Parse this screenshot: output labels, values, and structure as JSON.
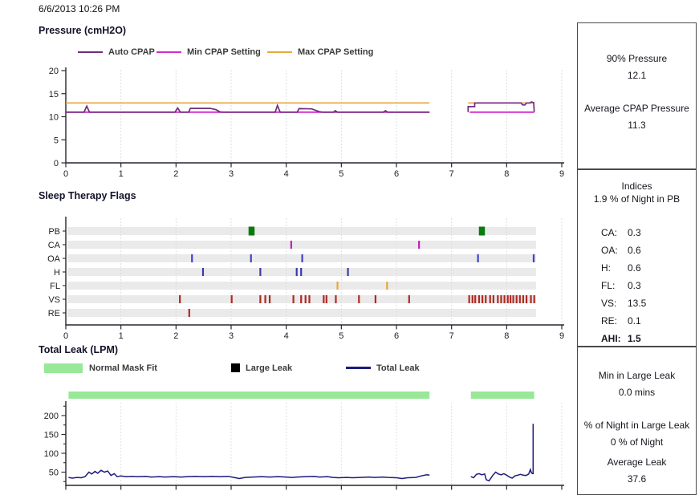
{
  "header": {
    "datetime": "6/6/2013 10:26 PM"
  },
  "chart_data": [
    {
      "id": "pressure",
      "type": "line",
      "title": "Pressure (cmH2O)",
      "xlim": [
        0,
        9
      ],
      "ylim": [
        0,
        20
      ],
      "x_ticks": [
        0,
        1,
        2,
        3,
        4,
        5,
        6,
        7,
        8,
        9
      ],
      "y_ticks": [
        0,
        5,
        10,
        15,
        20
      ],
      "grid": "vertical-dotted",
      "legend_position": "top",
      "legend": [
        {
          "label": "Auto CPAP",
          "color": "#732A7E"
        },
        {
          "label": "Min CPAP Setting",
          "color": "#D02BD0"
        },
        {
          "label": "Max CPAP Setting",
          "color": "#E9A63B"
        }
      ],
      "series": [
        {
          "name": "Max CPAP Setting",
          "color": "#E9A63B",
          "width": 1.7,
          "segments": [
            [
              [
                0,
                13
              ],
              [
                6.6,
                13
              ]
            ],
            [
              [
                7.3,
                13
              ],
              [
                8.5,
                13
              ]
            ]
          ]
        },
        {
          "name": "Min CPAP Setting",
          "color": "#D02BD0",
          "width": 1.9,
          "segments": [
            [
              [
                0,
                11
              ],
              [
                6.6,
                11
              ]
            ],
            [
              [
                7.33,
                11
              ],
              [
                8.5,
                11
              ]
            ]
          ]
        },
        {
          "name": "Auto CPAP",
          "color": "#732A7E",
          "width": 1.7,
          "segments": [
            [
              [
                0,
                11
              ],
              [
                0.33,
                11
              ],
              [
                0.38,
                12.3
              ],
              [
                0.43,
                11
              ],
              [
                1.98,
                11
              ],
              [
                2.03,
                11.9
              ],
              [
                2.08,
                11
              ],
              [
                2.23,
                11
              ],
              [
                2.26,
                11.8
              ],
              [
                2.62,
                11.8
              ],
              [
                2.72,
                11.55
              ],
              [
                2.8,
                11.05
              ],
              [
                2.85,
                11
              ],
              [
                3.8,
                11
              ],
              [
                3.84,
                12.45
              ],
              [
                3.89,
                11
              ],
              [
                4.2,
                11
              ],
              [
                4.23,
                11.75
              ],
              [
                4.46,
                11.7
              ],
              [
                4.6,
                11.1
              ],
              [
                4.66,
                11
              ],
              [
                4.86,
                11
              ],
              [
                4.89,
                11.3
              ],
              [
                4.93,
                11
              ],
              [
                5.76,
                11
              ],
              [
                5.8,
                11.3
              ],
              [
                5.84,
                11
              ],
              [
                6.6,
                11
              ]
            ],
            [
              [
                7.3,
                11
              ],
              [
                7.3,
                12.2
              ],
              [
                7.42,
                12.2
              ],
              [
                7.42,
                13
              ],
              [
                8.26,
                13
              ],
              [
                8.29,
                12.55
              ],
              [
                8.33,
                12.55
              ],
              [
                8.36,
                13
              ],
              [
                8.42,
                13
              ],
              [
                8.45,
                13.2
              ],
              [
                8.49,
                13.05
              ],
              [
                8.5,
                11.05
              ]
            ]
          ]
        }
      ]
    },
    {
      "id": "flags",
      "type": "event-timeline",
      "title": "Sleep Therapy Flags",
      "xlim": [
        0,
        9
      ],
      "x_ticks": [
        0,
        1,
        2,
        3,
        4,
        5,
        6,
        7,
        8,
        9
      ],
      "band_color": "#EAEAEA",
      "rows": [
        {
          "label": "PB",
          "color": "#0B7A0E",
          "style": "square",
          "events": [
            3.37,
            7.55
          ]
        },
        {
          "label": "CA",
          "color": "#BB22BB",
          "style": "tick",
          "events": [
            4.09,
            6.41
          ]
        },
        {
          "label": "OA",
          "color": "#4040CF",
          "style": "tick",
          "events": [
            2.29,
            3.36,
            4.29,
            7.48,
            8.49
          ]
        },
        {
          "label": "H",
          "color": "#3A3AB0",
          "style": "tick",
          "events": [
            2.49,
            3.53,
            4.19,
            4.27,
            5.12
          ]
        },
        {
          "label": "FL",
          "color": "#E9A63B",
          "style": "tick",
          "events": [
            4.93,
            5.83
          ]
        },
        {
          "label": "VS",
          "color": "#B02B23",
          "style": "tick",
          "events": [
            2.07,
            3.01,
            3.53,
            3.62,
            3.7,
            4.13,
            4.27,
            4.35,
            4.42,
            4.68,
            4.73,
            4.9,
            5.32,
            5.62,
            6.23,
            7.32,
            7.38,
            7.43,
            7.5,
            7.56,
            7.62,
            7.7,
            7.76,
            7.84,
            7.9,
            7.96,
            8.02,
            8.07,
            8.12,
            8.18,
            8.24,
            8.3,
            8.36,
            8.44,
            8.5
          ]
        },
        {
          "label": "RE",
          "color": "#B02B23",
          "style": "tick",
          "events": [
            2.24
          ]
        }
      ]
    },
    {
      "id": "leak",
      "type": "line",
      "title": "Total Leak (LPM)",
      "xlim": [
        0,
        9
      ],
      "ylim": [
        15,
        250
      ],
      "x_ticks": [
        0,
        1,
        2,
        3,
        4,
        5,
        6,
        7,
        8,
        9
      ],
      "y_ticks": [
        50,
        100,
        150,
        200
      ],
      "x_tick_labels_visible": false,
      "normal_color": "#98E898",
      "normal_mask_fit_bars": [
        [
          0.05,
          6.6
        ],
        [
          7.35,
          8.5
        ]
      ],
      "legend": [
        {
          "label": "Normal Mask Fit",
          "color": "#98E898",
          "swatch": "bar"
        },
        {
          "label": "Large Leak",
          "color": "#000000",
          "swatch": "square"
        },
        {
          "label": "Total Leak",
          "color": "#1B1B7F",
          "swatch": "line"
        }
      ],
      "series": [
        {
          "name": "Total Leak",
          "color": "#1B1B7F",
          "width": 1.5,
          "segments": [
            [
              [
                0.05,
                36
              ],
              [
                0.12,
                34
              ],
              [
                0.2,
                36
              ],
              [
                0.28,
                35
              ],
              [
                0.35,
                38
              ],
              [
                0.42,
                50
              ],
              [
                0.47,
                45
              ],
              [
                0.53,
                52
              ],
              [
                0.58,
                47
              ],
              [
                0.64,
                55
              ],
              [
                0.7,
                50
              ],
              [
                0.76,
                53
              ],
              [
                0.82,
                41
              ],
              [
                0.88,
                46
              ],
              [
                0.93,
                38
              ],
              [
                1.0,
                40
              ],
              [
                1.1,
                38
              ],
              [
                1.2,
                39
              ],
              [
                1.3,
                38
              ],
              [
                1.45,
                39
              ],
              [
                1.55,
                37
              ],
              [
                1.7,
                38
              ],
              [
                1.8,
                37
              ],
              [
                1.95,
                38
              ],
              [
                2.1,
                37
              ],
              [
                2.2,
                38
              ],
              [
                2.35,
                39
              ],
              [
                2.5,
                38
              ],
              [
                2.65,
                39
              ],
              [
                2.8,
                38
              ],
              [
                2.95,
                39
              ],
              [
                3.05,
                36
              ],
              [
                3.15,
                33
              ],
              [
                3.25,
                36
              ],
              [
                3.4,
                37
              ],
              [
                3.55,
                38
              ],
              [
                3.7,
                37
              ],
              [
                3.85,
                38
              ],
              [
                4.0,
                37
              ],
              [
                4.1,
                36
              ],
              [
                4.2,
                37
              ],
              [
                4.35,
                38
              ],
              [
                4.5,
                39
              ],
              [
                4.6,
                37
              ],
              [
                4.75,
                38
              ],
              [
                4.85,
                36
              ],
              [
                4.95,
                35
              ],
              [
                5.1,
                36
              ],
              [
                5.2,
                35
              ],
              [
                5.35,
                36
              ],
              [
                5.5,
                37
              ],
              [
                5.6,
                36
              ],
              [
                5.75,
                37
              ],
              [
                5.85,
                36
              ],
              [
                6.0,
                35
              ],
              [
                6.1,
                33
              ],
              [
                6.2,
                35
              ],
              [
                6.35,
                36
              ],
              [
                6.45,
                40
              ],
              [
                6.55,
                43
              ],
              [
                6.6,
                42
              ]
            ],
            [
              [
                7.35,
                38
              ],
              [
                7.4,
                35
              ],
              [
                7.45,
                44
              ],
              [
                7.5,
                46
              ],
              [
                7.55,
                43
              ],
              [
                7.6,
                45
              ],
              [
                7.63,
                30
              ],
              [
                7.68,
                27
              ],
              [
                7.75,
                42
              ],
              [
                7.8,
                50
              ],
              [
                7.85,
                45
              ],
              [
                7.9,
                43
              ],
              [
                7.95,
                46
              ],
              [
                8.0,
                42
              ],
              [
                8.05,
                37
              ],
              [
                8.1,
                34
              ],
              [
                8.15,
                40
              ],
              [
                8.2,
                42
              ],
              [
                8.25,
                44
              ],
              [
                8.3,
                42
              ],
              [
                8.35,
                41
              ],
              [
                8.4,
                45
              ],
              [
                8.43,
                57
              ],
              [
                8.45,
                48
              ],
              [
                8.47,
                46
              ],
              [
                8.48,
                46
              ],
              [
                8.48,
                178
              ]
            ]
          ]
        }
      ]
    }
  ],
  "sidebar": {
    "pressure_stats": {
      "rows": [
        {
          "label": "90% Pressure",
          "value": "12.1"
        },
        {
          "label": "Average CPAP Pressure",
          "value": "11.3"
        }
      ]
    },
    "indices": {
      "title": "Indices",
      "subtitle": "1.9 % of Night in PB",
      "rows": [
        {
          "label": "CA:",
          "value": "0.3"
        },
        {
          "label": "OA:",
          "value": "0.6"
        },
        {
          "label": "H:",
          "value": "0.6"
        },
        {
          "label": "FL:",
          "value": "0.3"
        },
        {
          "label": "VS:",
          "value": "13.5"
        },
        {
          "label": "RE:",
          "value": "0.1"
        },
        {
          "label": "AHI:",
          "value": "1.5"
        }
      ]
    },
    "leak_stats": {
      "rows": [
        {
          "label": "Min in Large Leak",
          "value": "0.0 mins"
        },
        {
          "label": "% of Night in Large Leak",
          "value": "0 % of Night"
        },
        {
          "label": "Average Leak",
          "value": "37.6"
        }
      ]
    }
  }
}
